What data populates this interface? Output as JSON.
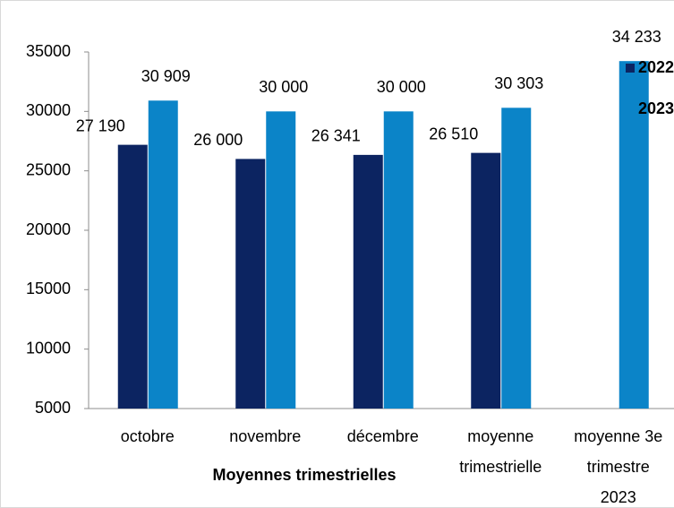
{
  "chart_data": {
    "type": "bar",
    "x_label": "Moyennes trimestrielles",
    "categories": [
      "octobre",
      "novembre",
      "décembre",
      "moyenne\ntrimestrielle",
      "moyenne 3e\ntrimestre\n2023"
    ],
    "series": [
      {
        "name": "2022",
        "color": "#0c2461",
        "values": [
          27190,
          26000,
          26341,
          26510,
          null
        ],
        "value_labels": [
          "27 190",
          "26 000",
          "26 341",
          "26 510",
          null
        ]
      },
      {
        "name": "2023",
        "color": "#0b84c8",
        "values": [
          30909,
          30000,
          30000,
          30303,
          34233
        ],
        "value_labels": [
          "30 909",
          "30 000",
          "30 000",
          "30 303",
          "34 233"
        ]
      }
    ],
    "ylim": [
      5000,
      35000
    ],
    "yticks": [
      5000,
      10000,
      15000,
      20000,
      25000,
      30000,
      35000
    ],
    "grid": false,
    "legend": "right"
  }
}
